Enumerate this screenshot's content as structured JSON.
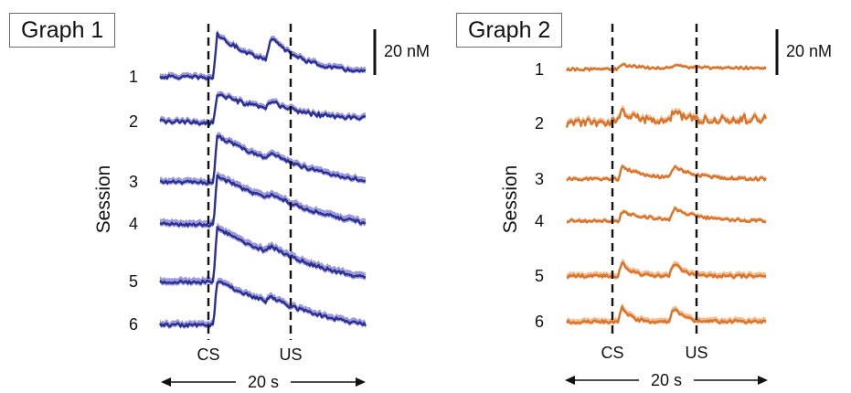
{
  "chart_data": [
    {
      "type": "line",
      "title": "Graph 1",
      "ylabel": "Session",
      "x_events": [
        {
          "label": "CS",
          "time": 5.2
        },
        {
          "label": "US",
          "time": 10.3
        }
      ],
      "time_span": {
        "label": "20 s",
        "value": 20,
        "unit": "s"
      },
      "scale_bar": {
        "label": "20 nM",
        "value": 20,
        "unit": "nM"
      },
      "color": "#2b2f8f",
      "band_color": "#8a88d8",
      "series": [
        {
          "name": "1",
          "shape": {
            "base": 0,
            "cs_peak": 27,
            "cs_decay": 0.55,
            "cs_drift": 3,
            "us_peak": 16,
            "us_decay": 0.95,
            "noise": 1.1,
            "band": 4,
            "end_drift": -2
          }
        },
        {
          "name": "2",
          "shape": {
            "base": 0,
            "cs_peak": 18,
            "cs_decay": 0.45,
            "cs_drift": 3,
            "us_peak": 6,
            "us_decay": 1.2,
            "noise": 1.3,
            "band": 4,
            "end_drift": -3
          }
        },
        {
          "name": "3",
          "shape": {
            "base": 0,
            "cs_peak": 29,
            "cs_decay": 0.35,
            "cs_drift": -2,
            "us_peak": 5,
            "us_decay": 1.0,
            "noise": 1.0,
            "band": 4.5,
            "end_drift": -2
          }
        },
        {
          "name": "4",
          "shape": {
            "base": 0,
            "cs_peak": 30,
            "cs_decay": 0.3,
            "cs_drift": -4,
            "us_peak": 4,
            "us_decay": 1.0,
            "noise": 1.0,
            "band": 5,
            "end_drift": -2
          }
        },
        {
          "name": "5",
          "shape": {
            "base": 0,
            "cs_peak": 33,
            "cs_decay": 0.28,
            "cs_drift": -4,
            "us_peak": 5,
            "us_decay": 1.0,
            "noise": 1.0,
            "band": 5,
            "end_drift": -2
          }
        },
        {
          "name": "6",
          "shape": {
            "base": 0,
            "cs_peak": 27,
            "cs_decay": 0.3,
            "cs_drift": -4,
            "us_peak": 4,
            "us_decay": 1.0,
            "noise": 1.1,
            "band": 4.5,
            "end_drift": -2
          }
        }
      ]
    },
    {
      "type": "line",
      "title": "Graph 2",
      "ylabel": "Session",
      "x_events": [
        {
          "label": "CS",
          "time": 5.2
        },
        {
          "label": "US",
          "time": 10.3
        }
      ],
      "time_span": {
        "label": "20 s",
        "value": 20,
        "unit": "s"
      },
      "scale_bar": {
        "label": "20 nM",
        "value": 20,
        "unit": "nM"
      },
      "color": "#d8742c",
      "band_color": "#f2b27c",
      "series": [
        {
          "name": "1",
          "shape": {
            "base": 0,
            "cs_peak": 3,
            "cs_decay": 1.5,
            "cs_drift": 0,
            "us_peak": 2,
            "us_decay": 1.5,
            "noise": 0.8,
            "band": 2,
            "end_drift": 1
          }
        },
        {
          "name": "2",
          "shape": {
            "base": 0,
            "cs_peak": 9,
            "cs_decay": 2.5,
            "cs_drift": 0,
            "us_peak": 8,
            "us_decay": 3.0,
            "noise": 2.6,
            "band": 4,
            "end_drift": 3
          }
        },
        {
          "name": "3",
          "shape": {
            "base": 0,
            "cs_peak": 8,
            "cs_decay": 1.2,
            "cs_drift": 0,
            "us_peak": 8,
            "us_decay": 1.3,
            "noise": 0.9,
            "band": 2.5,
            "end_drift": 0
          }
        },
        {
          "name": "4",
          "shape": {
            "base": 0,
            "cs_peak": 6,
            "cs_decay": 1.0,
            "cs_drift": 0,
            "us_peak": 8,
            "us_decay": 1.2,
            "noise": 0.9,
            "band": 2.5,
            "end_drift": 0
          }
        },
        {
          "name": "5",
          "shape": {
            "base": 0,
            "cs_peak": 12,
            "cs_decay": 3.0,
            "cs_drift": 0,
            "us_peak": 13,
            "us_decay": 3.0,
            "noise": 0.9,
            "band": 4,
            "end_drift": 0
          }
        },
        {
          "name": "6",
          "shape": {
            "base": 0,
            "cs_peak": 14,
            "cs_decay": 3.5,
            "cs_drift": 0,
            "us_peak": 14,
            "us_decay": 3.0,
            "noise": 1.0,
            "band": 4,
            "end_drift": 0
          }
        }
      ]
    }
  ]
}
